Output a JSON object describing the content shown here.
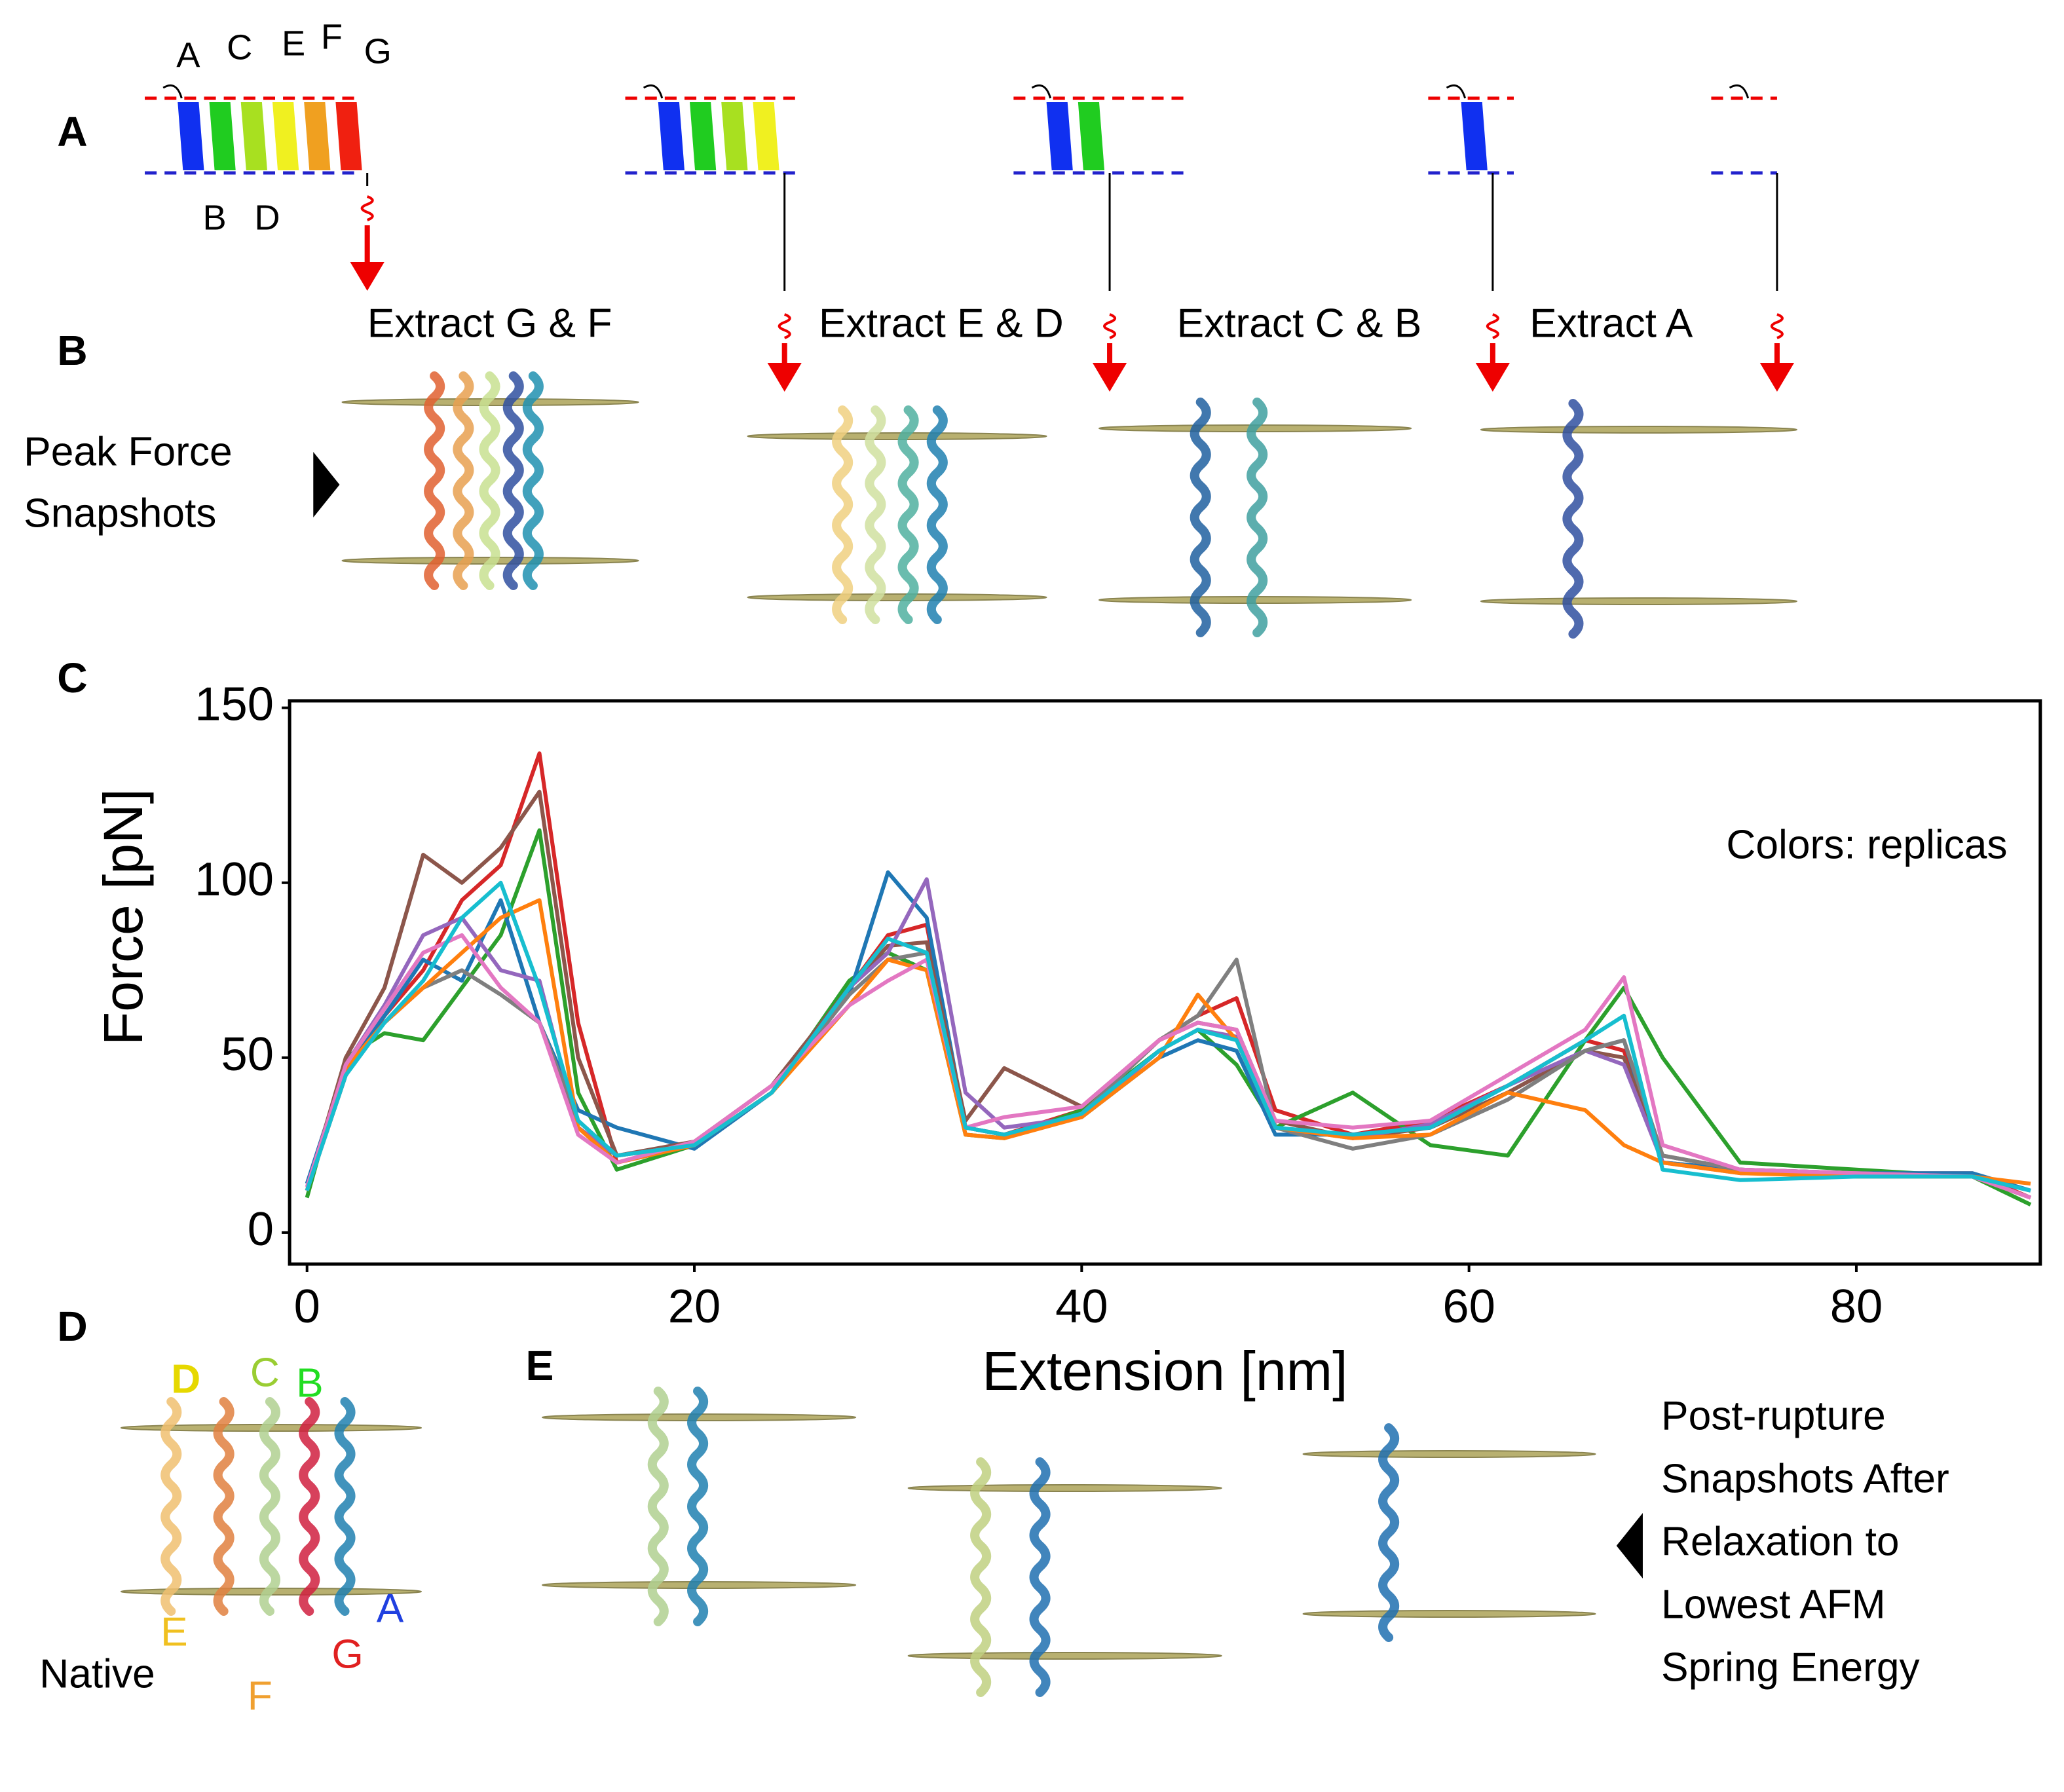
{
  "panels": {
    "labels": [
      "A",
      "B",
      "C",
      "D",
      "E"
    ],
    "helix_letters_top": [
      "A",
      "C",
      "E",
      "F",
      "G"
    ],
    "helix_letters_bottom": [
      "B",
      "D"
    ],
    "extract_titles": [
      "Extract G & F",
      "Extract E & D",
      "Extract C & B",
      "Extract A"
    ],
    "peak_force_lines": [
      "Peak Force",
      "Snapshots"
    ],
    "native_letters": [
      "D",
      "C",
      "B",
      "A",
      "E",
      "G",
      "F"
    ],
    "native_label": "Native",
    "post_rupture_lines": [
      "Post-rupture",
      "Snapshots After",
      "Relaxation to",
      "Lowest AFM",
      "Spring Energy"
    ]
  },
  "chart_data": {
    "type": "line",
    "x_label": "Extension [nm]",
    "y_label": "Force [pN]",
    "annotation": "Colors: replicas",
    "x": [
      0,
      2,
      4,
      6,
      8,
      10,
      12,
      14,
      16,
      20,
      24,
      28,
      30,
      32,
      34,
      36,
      40,
      44,
      46,
      48,
      50,
      54,
      58,
      62,
      66,
      68,
      70,
      74,
      80,
      86,
      89
    ],
    "series": [
      {
        "color": "#d62728",
        "values": [
          12,
          45,
          62,
          75,
          95,
          105,
          137,
          60,
          20,
          25,
          40,
          70,
          85,
          88,
          30,
          28,
          35,
          55,
          62,
          67,
          35,
          28,
          32,
          42,
          55,
          52,
          20,
          18,
          17,
          17,
          10
        ]
      },
      {
        "color": "#2ca02c",
        "values": [
          10,
          50,
          57,
          55,
          70,
          85,
          115,
          40,
          18,
          25,
          40,
          72,
          80,
          75,
          28,
          27,
          35,
          52,
          58,
          48,
          30,
          40,
          25,
          22,
          55,
          70,
          50,
          20,
          18,
          16,
          8
        ]
      },
      {
        "color": "#1f77b4",
        "values": [
          14,
          48,
          62,
          78,
          72,
          95,
          60,
          35,
          30,
          24,
          40,
          68,
          103,
          90,
          30,
          28,
          33,
          50,
          55,
          52,
          28,
          28,
          30,
          40,
          52,
          55,
          20,
          18,
          17,
          17,
          12
        ]
      },
      {
        "color": "#8c564b",
        "values": [
          12,
          50,
          70,
          108,
          100,
          110,
          126,
          50,
          22,
          26,
          42,
          70,
          82,
          83,
          32,
          47,
          36,
          55,
          60,
          58,
          32,
          27,
          30,
          40,
          52,
          50,
          22,
          18,
          16,
          16,
          10
        ]
      },
      {
        "color": "#9467bd",
        "values": [
          12,
          48,
          65,
          85,
          90,
          75,
          72,
          30,
          22,
          25,
          40,
          70,
          80,
          101,
          40,
          30,
          33,
          52,
          58,
          56,
          30,
          27,
          31,
          42,
          52,
          48,
          20,
          17,
          17,
          16,
          12
        ]
      },
      {
        "color": "#7f7f7f",
        "values": [
          12,
          46,
          60,
          70,
          75,
          68,
          60,
          32,
          22,
          25,
          40,
          68,
          78,
          80,
          30,
          28,
          34,
          55,
          62,
          78,
          30,
          24,
          28,
          38,
          52,
          55,
          22,
          18,
          17,
          16,
          10
        ]
      },
      {
        "color": "#ff7f0e",
        "values": [
          12,
          47,
          60,
          70,
          80,
          90,
          95,
          30,
          20,
          25,
          40,
          65,
          78,
          75,
          28,
          27,
          33,
          50,
          68,
          55,
          30,
          27,
          28,
          40,
          35,
          25,
          20,
          17,
          16,
          16,
          14
        ]
      },
      {
        "color": "#e377c2",
        "values": [
          13,
          48,
          64,
          80,
          85,
          70,
          60,
          28,
          20,
          26,
          42,
          65,
          72,
          78,
          30,
          33,
          36,
          55,
          60,
          58,
          32,
          30,
          32,
          45,
          58,
          73,
          25,
          18,
          17,
          16,
          10
        ]
      },
      {
        "color": "#17becf",
        "values": [
          12,
          45,
          60,
          72,
          90,
          100,
          70,
          32,
          22,
          25,
          40,
          70,
          84,
          80,
          30,
          28,
          34,
          52,
          58,
          55,
          30,
          28,
          30,
          42,
          55,
          62,
          18,
          15,
          16,
          16,
          12
        ]
      }
    ],
    "xlim": [
      -0.9,
      89.5
    ],
    "ylim": [
      -9,
      152
    ],
    "xticks": [
      0,
      20,
      40,
      60,
      80
    ],
    "yticks": [
      0,
      50,
      100,
      150
    ]
  }
}
